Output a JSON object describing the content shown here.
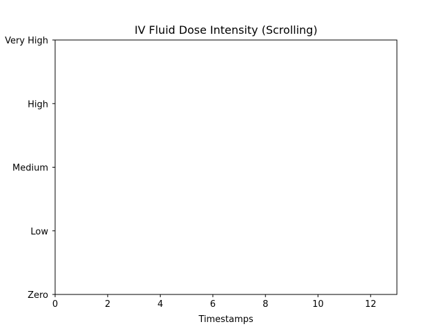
{
  "chart_data": {
    "type": "line",
    "title": "IV Fluid Dose Intensity (Scrolling)",
    "xlabel": "Timestamps",
    "ylabel": "",
    "xlim": [
      0,
      13
    ],
    "x_ticks": [
      0,
      2,
      4,
      6,
      8,
      10,
      12
    ],
    "y_categories": [
      "Zero",
      "Low",
      "Medium",
      "High",
      "Very High"
    ],
    "ylim": [
      0,
      4
    ],
    "grid": false,
    "series": []
  }
}
